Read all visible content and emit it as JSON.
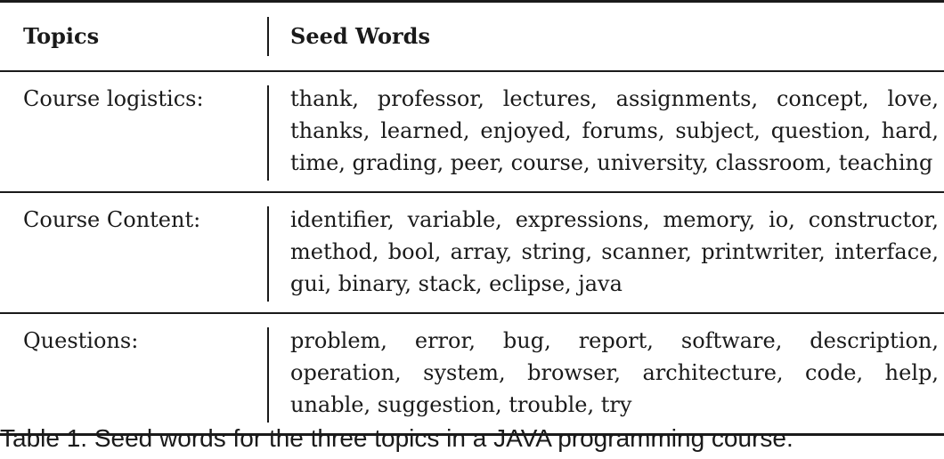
{
  "table": {
    "headers": {
      "topics": "Topics",
      "seed_words": "Seed Words"
    },
    "rows": [
      {
        "topic": "Course logistics:",
        "seed_words": "thank, professor, lectures, assignments, concept, love, thanks, learned, enjoyed, forums, subject, question, hard, time, grading, peer, course, university, classroom, teaching"
      },
      {
        "topic": "Course Content:",
        "seed_words": "identifier, variable, expressions, memory, io, constructor, method, bool, array, string, scanner, printwriter, interface, gui, binary, stack, eclipse, java"
      },
      {
        "topic": "Questions:",
        "seed_words": "problem, error, bug, report, software, description, operation, system, browser, architecture, code, help, unable, suggestion, trouble, try"
      }
    ]
  },
  "caption": "Table 1. Seed words for the three topics in a JAVA programming course."
}
